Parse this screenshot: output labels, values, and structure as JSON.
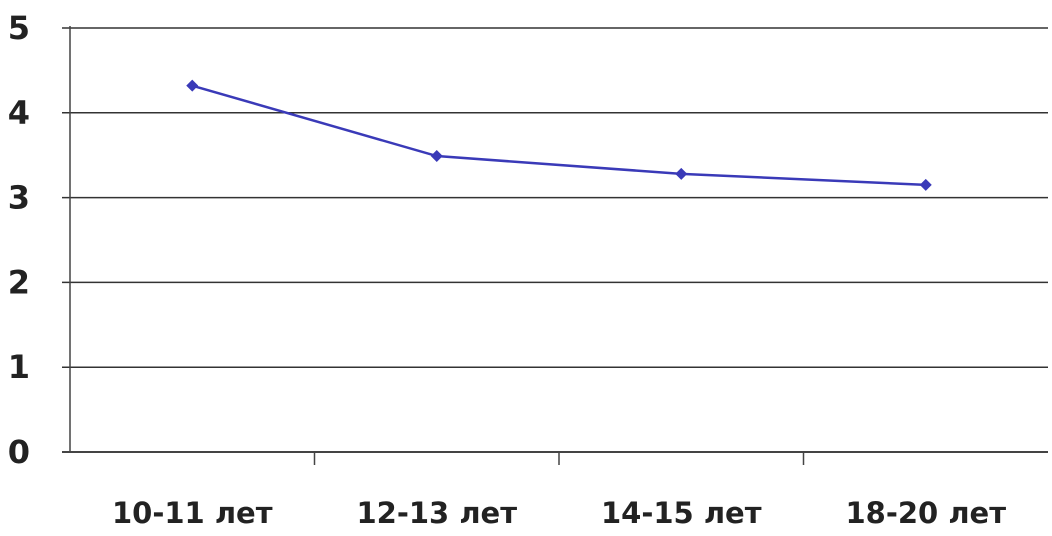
{
  "chart_data": {
    "type": "line",
    "categories": [
      "10-11 лет",
      "12-13 лет",
      "14-15 лет",
      "18-20 лет"
    ],
    "series": [
      {
        "values": [
          4.32,
          3.49,
          3.28,
          3.15
        ]
      }
    ],
    "title": "",
    "xlabel": "",
    "ylabel": "",
    "ylim": [
      0,
      5
    ],
    "yticks": [
      "0",
      "1",
      "2",
      "3",
      "4",
      "5"
    ],
    "grid": true,
    "legend": "none",
    "colors": {
      "line": "#3a3ab8",
      "grid": "#333333",
      "axis": "#444444"
    }
  }
}
